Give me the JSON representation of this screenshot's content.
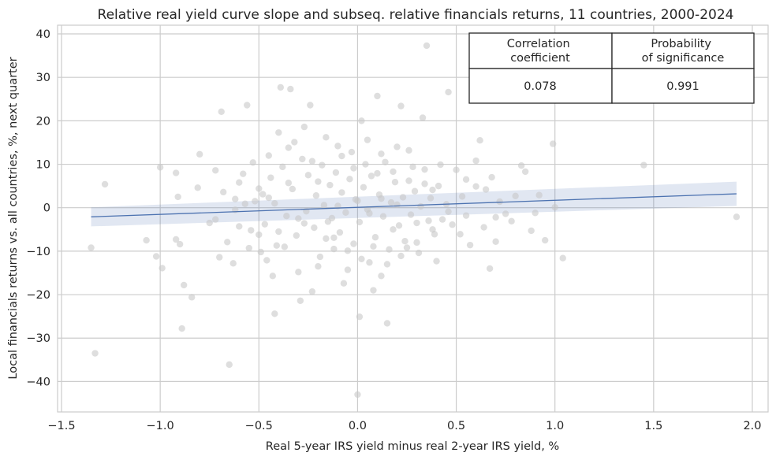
{
  "chart_data": {
    "type": "scatter",
    "title": "Relative real yield curve slope and subseq. relative financials returns, 11 countries, 2000-2024",
    "xlabel": "Real 5-year IRS yield minus real 2-year IRS yield, %",
    "ylabel": "Local financials returns vs. all countries, %, next quarter",
    "xlim": [
      -1.52,
      2.08
    ],
    "ylim": [
      -47,
      42
    ],
    "x_ticks": [
      -1.5,
      -1.0,
      -0.5,
      0.0,
      0.5,
      1.0,
      1.5,
      2.0
    ],
    "x_tick_labels": [
      "−1.5",
      "−1.0",
      "−0.5",
      "0.0",
      "0.5",
      "1.0",
      "1.5",
      "2.0"
    ],
    "y_ticks": [
      -40,
      -30,
      -20,
      -10,
      0,
      10,
      20,
      30,
      40
    ],
    "y_tick_labels": [
      "−40",
      "−30",
      "−20",
      "−10",
      "0",
      "10",
      "20",
      "30",
      "40"
    ],
    "grid": true,
    "colors": {
      "points": "#c8c8c8",
      "regression": "#4c72b0",
      "band": "#4c72b0"
    },
    "regression": {
      "x": [
        -1.35,
        1.92
      ],
      "y": [
        -2.1,
        3.2
      ],
      "ci_at_ends": [
        [
          -4.3,
          0.1
        ],
        [
          0.4,
          6.0
        ]
      ]
    },
    "points": [
      {
        "x": -1.35,
        "y": -9.2
      },
      {
        "x": -1.33,
        "y": -33.5
      },
      {
        "x": -1.28,
        "y": 5.4
      },
      {
        "x": -1.07,
        "y": -7.5
      },
      {
        "x": -1.02,
        "y": -11.2
      },
      {
        "x": -1.0,
        "y": 9.3
      },
      {
        "x": -0.99,
        "y": -13.9
      },
      {
        "x": -0.92,
        "y": 8.0
      },
      {
        "x": -0.92,
        "y": -7.3
      },
      {
        "x": -0.91,
        "y": 2.5
      },
      {
        "x": -0.9,
        "y": -8.4
      },
      {
        "x": -0.89,
        "y": -27.8
      },
      {
        "x": -0.88,
        "y": -17.8
      },
      {
        "x": -0.84,
        "y": -20.6
      },
      {
        "x": -0.81,
        "y": 4.6
      },
      {
        "x": -0.8,
        "y": 12.3
      },
      {
        "x": -0.75,
        "y": -3.5
      },
      {
        "x": -0.72,
        "y": 8.6
      },
      {
        "x": -0.7,
        "y": -11.4
      },
      {
        "x": -0.69,
        "y": 22.1
      },
      {
        "x": -0.65,
        "y": -36.1
      },
      {
        "x": -0.63,
        "y": -12.8
      },
      {
        "x": -0.62,
        "y": 2.0
      },
      {
        "x": -0.6,
        "y": 5.8
      },
      {
        "x": -0.56,
        "y": 23.6
      },
      {
        "x": -0.55,
        "y": -9.3
      },
      {
        "x": -0.5,
        "y": -6.2
      },
      {
        "x": -0.48,
        "y": 3.1
      },
      {
        "x": -0.45,
        "y": 12.0
      },
      {
        "x": -0.43,
        "y": -15.7
      },
      {
        "x": -0.42,
        "y": -24.4
      },
      {
        "x": -0.4,
        "y": 17.3
      },
      {
        "x": -0.39,
        "y": 27.7
      },
      {
        "x": -0.35,
        "y": 13.8
      },
      {
        "x": -0.34,
        "y": 27.3
      },
      {
        "x": -0.3,
        "y": -14.8
      },
      {
        "x": -0.29,
        "y": -21.4
      },
      {
        "x": -0.27,
        "y": 18.6
      },
      {
        "x": -0.24,
        "y": 23.6
      },
      {
        "x": -0.23,
        "y": -19.3
      },
      {
        "x": -0.2,
        "y": 6.0
      },
      {
        "x": -0.15,
        "y": -3.2
      },
      {
        "x": -0.12,
        "y": -9.5
      },
      {
        "x": -0.1,
        "y": 14.2
      },
      {
        "x": -0.07,
        "y": -17.4
      },
      {
        "x": -0.05,
        "y": -9.9
      },
      {
        "x": -0.03,
        "y": 12.8
      },
      {
        "x": 0.0,
        "y": -43.0
      },
      {
        "x": 0.01,
        "y": -25.1
      },
      {
        "x": 0.02,
        "y": 20.0
      },
      {
        "x": 0.04,
        "y": 10.0
      },
      {
        "x": 0.06,
        "y": -12.6
      },
      {
        "x": 0.08,
        "y": -19.0
      },
      {
        "x": 0.1,
        "y": 7.9
      },
      {
        "x": 0.12,
        "y": 2.1
      },
      {
        "x": 0.1,
        "y": 25.7
      },
      {
        "x": 0.12,
        "y": -15.7
      },
      {
        "x": 0.15,
        "y": -26.6
      },
      {
        "x": 0.18,
        "y": -5.0
      },
      {
        "x": 0.2,
        "y": 14.0
      },
      {
        "x": 0.22,
        "y": 23.4
      },
      {
        "x": 0.25,
        "y": -9.2
      },
      {
        "x": 0.28,
        "y": 9.4
      },
      {
        "x": 0.3,
        "y": -3.5
      },
      {
        "x": 0.33,
        "y": 20.7
      },
      {
        "x": 0.35,
        "y": 37.3
      },
      {
        "x": 0.38,
        "y": 4.1
      },
      {
        "x": 0.4,
        "y": -12.3
      },
      {
        "x": 0.45,
        "y": 0.8
      },
      {
        "x": 0.46,
        "y": 26.6
      },
      {
        "x": 0.5,
        "y": 8.7
      },
      {
        "x": 0.52,
        "y": -6.1
      },
      {
        "x": 0.55,
        "y": 6.5
      },
      {
        "x": 0.6,
        "y": 10.8
      },
      {
        "x": 0.62,
        "y": 15.5
      },
      {
        "x": 0.65,
        "y": 4.2
      },
      {
        "x": 0.67,
        "y": -14.0
      },
      {
        "x": 0.7,
        "y": -7.8
      },
      {
        "x": 0.75,
        "y": -1.4
      },
      {
        "x": 0.8,
        "y": 2.7
      },
      {
        "x": 0.83,
        "y": 9.7
      },
      {
        "x": 0.85,
        "y": 8.3
      },
      {
        "x": 0.88,
        "y": -5.3
      },
      {
        "x": 0.9,
        "y": -1.2
      },
      {
        "x": 0.92,
        "y": 2.9
      },
      {
        "x": 0.95,
        "y": -7.5
      },
      {
        "x": 0.99,
        "y": 14.7
      },
      {
        "x": 1.0,
        "y": 0.1
      },
      {
        "x": 1.04,
        "y": -11.6
      },
      {
        "x": 1.45,
        "y": 9.8
      },
      {
        "x": 1.92,
        "y": -2.1
      },
      {
        "x": -0.52,
        "y": 1.5
      },
      {
        "x": -0.47,
        "y": -3.8
      },
      {
        "x": -0.44,
        "y": 6.9
      },
      {
        "x": -0.41,
        "y": -8.7
      },
      {
        "x": -0.38,
        "y": 9.4
      },
      {
        "x": -0.36,
        "y": -1.9
      },
      {
        "x": -0.33,
        "y": 4.3
      },
      {
        "x": -0.31,
        "y": -6.4
      },
      {
        "x": -0.28,
        "y": 11.2
      },
      {
        "x": -0.26,
        "y": -0.8
      },
      {
        "x": -0.25,
        "y": 7.5
      },
      {
        "x": -0.22,
        "y": -4.6
      },
      {
        "x": -0.21,
        "y": 2.8
      },
      {
        "x": -0.19,
        "y": -11.3
      },
      {
        "x": -0.18,
        "y": 9.8
      },
      {
        "x": -0.17,
        "y": 0.6
      },
      {
        "x": -0.16,
        "y": -7.1
      },
      {
        "x": -0.14,
        "y": 5.2
      },
      {
        "x": -0.13,
        "y": -2.4
      },
      {
        "x": -0.11,
        "y": 8.1
      },
      {
        "x": -0.09,
        "y": -5.7
      },
      {
        "x": -0.08,
        "y": 3.5
      },
      {
        "x": -0.06,
        "y": -1.1
      },
      {
        "x": -0.04,
        "y": 6.6
      },
      {
        "x": -0.02,
        "y": -8.3
      },
      {
        "x": -0.01,
        "y": 1.9
      },
      {
        "x": 0.01,
        "y": -3.3
      },
      {
        "x": 0.03,
        "y": 4.7
      },
      {
        "x": 0.05,
        "y": -0.4
      },
      {
        "x": 0.07,
        "y": 7.3
      },
      {
        "x": 0.09,
        "y": -6.8
      },
      {
        "x": 0.11,
        "y": 3.0
      },
      {
        "x": 0.13,
        "y": -2.0
      },
      {
        "x": 0.14,
        "y": 10.5
      },
      {
        "x": 0.16,
        "y": -9.6
      },
      {
        "x": 0.17,
        "y": 1.2
      },
      {
        "x": 0.19,
        "y": 5.9
      },
      {
        "x": 0.21,
        "y": -4.1
      },
      {
        "x": 0.23,
        "y": 2.4
      },
      {
        "x": 0.24,
        "y": -7.7
      },
      {
        "x": 0.26,
        "y": 6.2
      },
      {
        "x": 0.27,
        "y": -1.6
      },
      {
        "x": 0.29,
        "y": 3.8
      },
      {
        "x": 0.31,
        "y": -10.4
      },
      {
        "x": 0.32,
        "y": 0.3
      },
      {
        "x": 0.34,
        "y": 8.8
      },
      {
        "x": 0.36,
        "y": -3.0
      },
      {
        "x": 0.37,
        "y": 2.2
      },
      {
        "x": 0.39,
        "y": -6.1
      },
      {
        "x": 0.41,
        "y": 5.0
      },
      {
        "x": 0.43,
        "y": -2.7
      },
      {
        "x": -0.62,
        "y": -0.5
      },
      {
        "x": -0.58,
        "y": 7.8
      },
      {
        "x": -0.54,
        "y": -5.2
      },
      {
        "x": -0.5,
        "y": 4.4
      },
      {
        "x": -0.46,
        "y": -12.1
      },
      {
        "x": -0.42,
        "y": 1.0
      },
      {
        "x": -0.37,
        "y": -9.0
      },
      {
        "x": -0.32,
        "y": 15.1
      },
      {
        "x": -0.27,
        "y": -3.6
      },
      {
        "x": -0.23,
        "y": 10.7
      },
      {
        "x": -0.2,
        "y": -13.5
      },
      {
        "x": -0.16,
        "y": 16.2
      },
      {
        "x": -0.12,
        "y": -6.9
      },
      {
        "x": -0.08,
        "y": 11.9
      },
      {
        "x": -0.05,
        "y": -14.3
      },
      {
        "x": -0.02,
        "y": 9.1
      },
      {
        "x": 0.02,
        "y": -11.8
      },
      {
        "x": 0.05,
        "y": 15.6
      },
      {
        "x": 0.08,
        "y": -8.9
      },
      {
        "x": 0.12,
        "y": 12.4
      },
      {
        "x": 0.15,
        "y": -13.0
      },
      {
        "x": 0.18,
        "y": 8.3
      },
      {
        "x": 0.22,
        "y": -11.1
      },
      {
        "x": 0.26,
        "y": 13.2
      },
      {
        "x": 0.3,
        "y": -8.0
      },
      {
        "x": 0.34,
        "y": 5.5
      },
      {
        "x": 0.38,
        "y": -5.0
      },
      {
        "x": 0.42,
        "y": 9.9
      },
      {
        "x": 0.48,
        "y": -3.9
      },
      {
        "x": 0.53,
        "y": 2.6
      },
      {
        "x": 0.57,
        "y": -8.6
      },
      {
        "x": 0.6,
        "y": 4.9
      },
      {
        "x": 0.64,
        "y": -4.5
      },
      {
        "x": 0.68,
        "y": 7.0
      },
      {
        "x": 0.72,
        "y": 1.4
      },
      {
        "x": 0.78,
        "y": -3.1
      },
      {
        "x": -0.72,
        "y": -2.7
      },
      {
        "x": -0.68,
        "y": 3.6
      },
      {
        "x": -0.66,
        "y": -7.9
      },
      {
        "x": -0.6,
        "y": -4.3
      },
      {
        "x": -0.57,
        "y": 0.9
      },
      {
        "x": -0.53,
        "y": 10.4
      },
      {
        "x": -0.49,
        "y": -10.2
      },
      {
        "x": -0.45,
        "y": 2.3
      },
      {
        "x": -0.4,
        "y": -5.5
      },
      {
        "x": -0.35,
        "y": 5.7
      },
      {
        "x": -0.3,
        "y": -2.5
      },
      {
        "x": -0.1,
        "y": 0.4
      },
      {
        "x": 0.0,
        "y": 1.6
      },
      {
        "x": 0.06,
        "y": -1.3
      },
      {
        "x": 0.2,
        "y": 0.7
      },
      {
        "x": 0.46,
        "y": -0.9
      },
      {
        "x": 0.55,
        "y": -1.8
      },
      {
        "x": 0.7,
        "y": -2.2
      }
    ]
  },
  "stats_table": {
    "headers": [
      "Correlation coefficient",
      "Probability of significance"
    ],
    "header_lines": [
      [
        "Correlation",
        "coefficient"
      ],
      [
        "Probability",
        "of significance"
      ]
    ],
    "values": [
      "0.078",
      "0.991"
    ]
  }
}
